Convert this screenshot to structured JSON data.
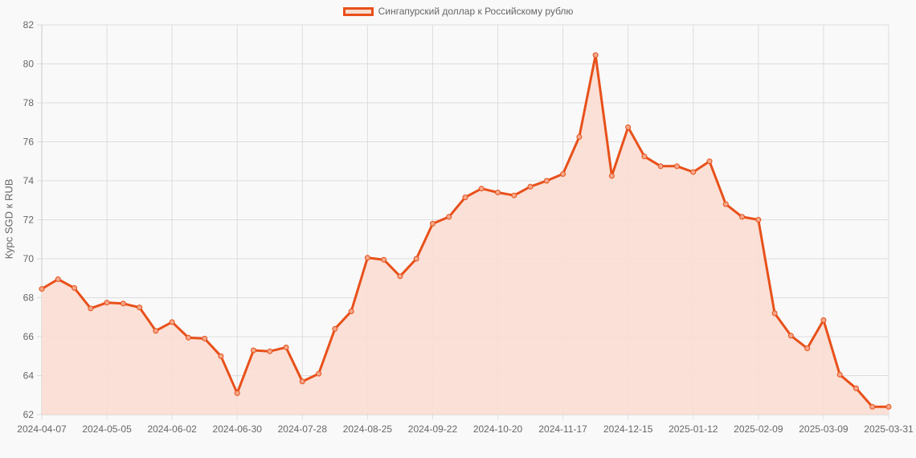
{
  "chart_data": {
    "type": "line",
    "title": "",
    "legend": [
      {
        "label": "Сингапурский доллар к Российскому рублю",
        "color": "#e8501a",
        "fill": "#f9ddd1"
      }
    ],
    "legend_position": "top",
    "xlabel": "",
    "ylabel": "Курс SGD к RUB",
    "ylim": [
      62,
      82
    ],
    "yticks": [
      62,
      64,
      66,
      68,
      70,
      72,
      74,
      76,
      78,
      80,
      82
    ],
    "grid": true,
    "xtick_labels": [
      "2024-04-07",
      "2024-05-05",
      "2024-06-02",
      "2024-06-30",
      "2024-07-28",
      "2024-08-25",
      "2024-09-22",
      "2024-10-20",
      "2024-11-17",
      "2024-12-15",
      "2025-01-12",
      "2025-02-09",
      "2025-03-09",
      "2025-03-31"
    ],
    "series": [
      {
        "name": "Сингапурский доллар к Российскому рублю",
        "x": [
          "2024-04-07",
          "2024-04-14",
          "2024-04-21",
          "2024-04-28",
          "2024-05-05",
          "2024-05-12",
          "2024-05-19",
          "2024-05-26",
          "2024-06-02",
          "2024-06-09",
          "2024-06-16",
          "2024-06-23",
          "2024-06-30",
          "2024-07-07",
          "2024-07-14",
          "2024-07-21",
          "2024-07-28",
          "2024-08-04",
          "2024-08-11",
          "2024-08-18",
          "2024-08-25",
          "2024-09-01",
          "2024-09-08",
          "2024-09-15",
          "2024-09-22",
          "2024-09-29",
          "2024-10-06",
          "2024-10-13",
          "2024-10-20",
          "2024-10-27",
          "2024-11-03",
          "2024-11-10",
          "2024-11-17",
          "2024-11-24",
          "2024-12-01",
          "2024-12-08",
          "2024-12-15",
          "2024-12-22",
          "2024-12-29",
          "2025-01-05",
          "2025-01-12",
          "2025-01-19",
          "2025-01-26",
          "2025-02-02",
          "2025-02-09",
          "2025-02-16",
          "2025-02-23",
          "2025-03-02",
          "2025-03-09",
          "2025-03-16",
          "2025-03-23",
          "2025-03-30",
          "2025-03-31"
        ],
        "values": [
          68.45,
          68.95,
          68.5,
          67.45,
          67.75,
          67.7,
          67.5,
          66.3,
          66.75,
          65.95,
          65.9,
          65.0,
          63.1,
          65.3,
          65.25,
          65.45,
          63.7,
          64.1,
          66.4,
          67.3,
          70.05,
          69.95,
          69.1,
          70.0,
          71.8,
          72.15,
          73.15,
          73.6,
          73.4,
          73.25,
          73.7,
          74.0,
          74.35,
          76.25,
          80.45,
          74.25,
          76.75,
          75.25,
          74.75,
          74.75,
          74.45,
          75.0,
          72.8,
          72.15,
          72.0,
          67.2,
          66.05,
          65.4,
          66.85,
          64.05,
          63.35,
          62.4,
          62.4
        ]
      }
    ]
  }
}
